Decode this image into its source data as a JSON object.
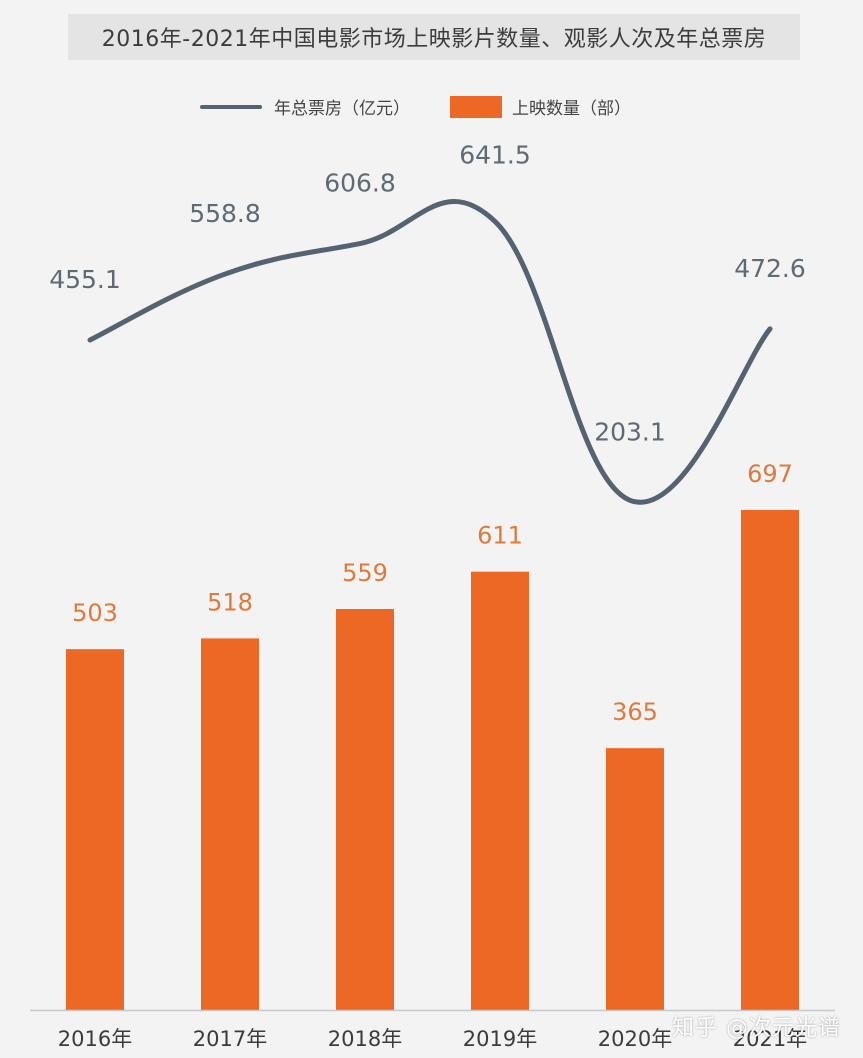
{
  "chart_data": {
    "type": "bar",
    "title": "2016年-2021年中国电影市场上映影片数量、观影人次及年总票房",
    "categories": [
      "2016年",
      "2017年",
      "2018年",
      "2019年",
      "2020年",
      "2021年"
    ],
    "series": [
      {
        "name": "年总票房（亿元）",
        "type": "line",
        "values": [
          455.1,
          558.8,
          606.8,
          641.5,
          203.1,
          472.6
        ],
        "color": "#546271"
      },
      {
        "name": "上映数量（部）",
        "type": "bar",
        "values": [
          503,
          518,
          559,
          611,
          365,
          697
        ],
        "color": "#ed6725"
      }
    ],
    "legend_position": "top",
    "grid": false
  },
  "watermark": "知乎 @次元光谱"
}
